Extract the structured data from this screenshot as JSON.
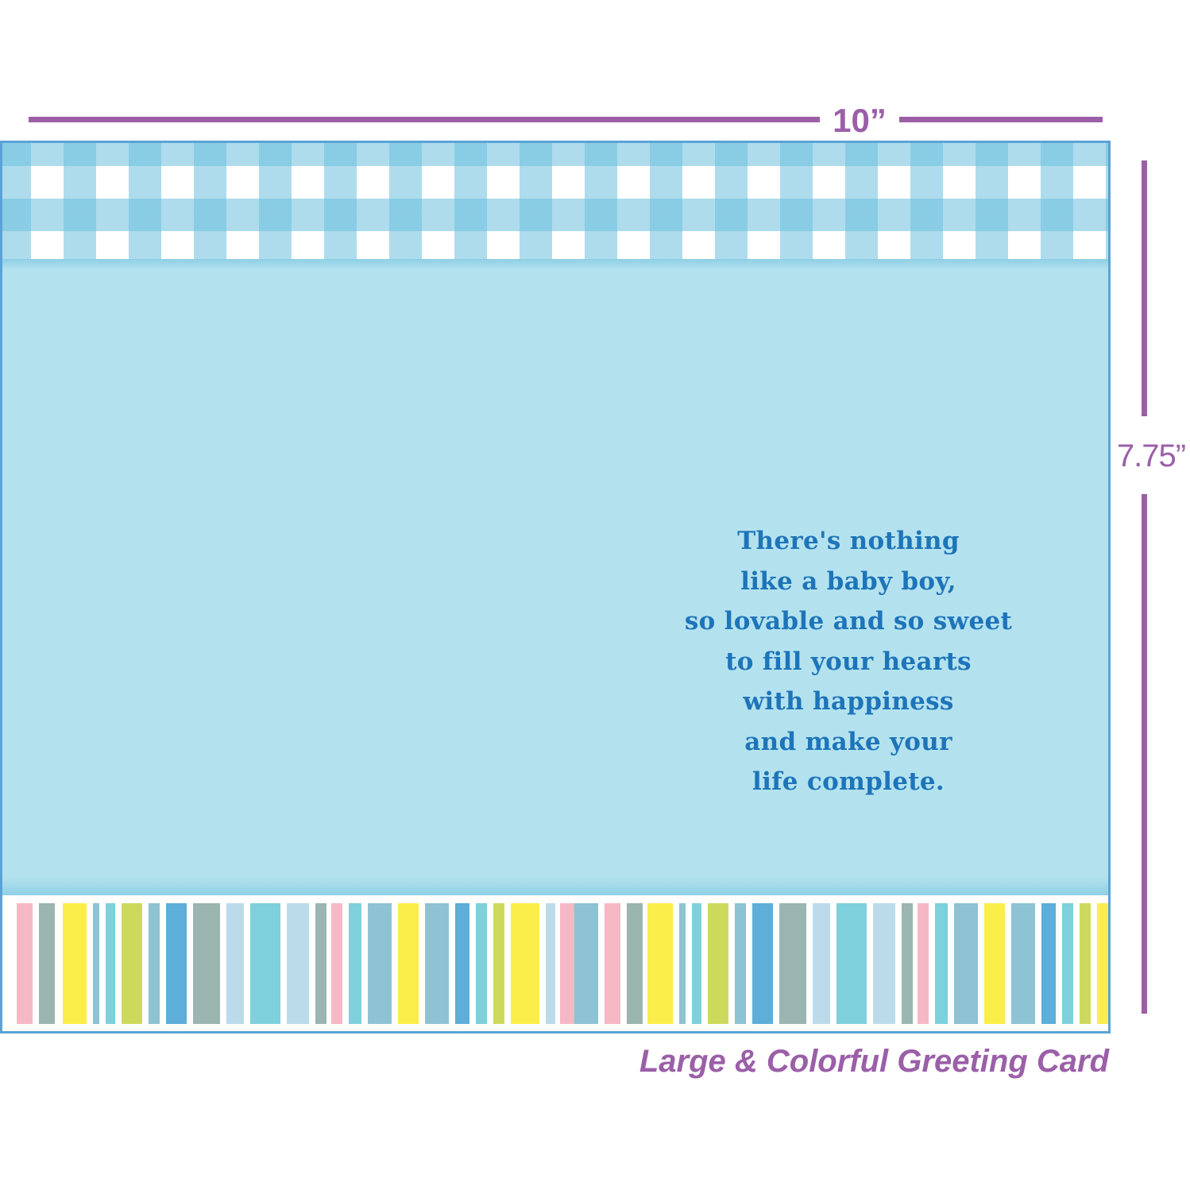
{
  "dimensions": {
    "width_label": "10”",
    "height_label": "7.75”"
  },
  "card": {
    "verse_lines": [
      "There's nothing",
      "like a baby boy,",
      "so lovable and so sweet",
      "to fill your hearts",
      "with happiness",
      "and make your",
      "life  complete."
    ],
    "colors": {
      "background": "#b3e2ee",
      "border": "#5ba3d6",
      "gingham": "#6bc0de",
      "verse_text": "#1e74b9"
    },
    "stripe_colors": [
      "#f6b8c4",
      "#9bb5b0",
      "#fbee4a",
      "#8dc3d3",
      "#7ed0dc",
      "#cdd95c",
      "#5daed8",
      "#bcdbea"
    ]
  },
  "caption": "Large & Colorful Greeting Card",
  "accent_color": "#9b5fa8"
}
